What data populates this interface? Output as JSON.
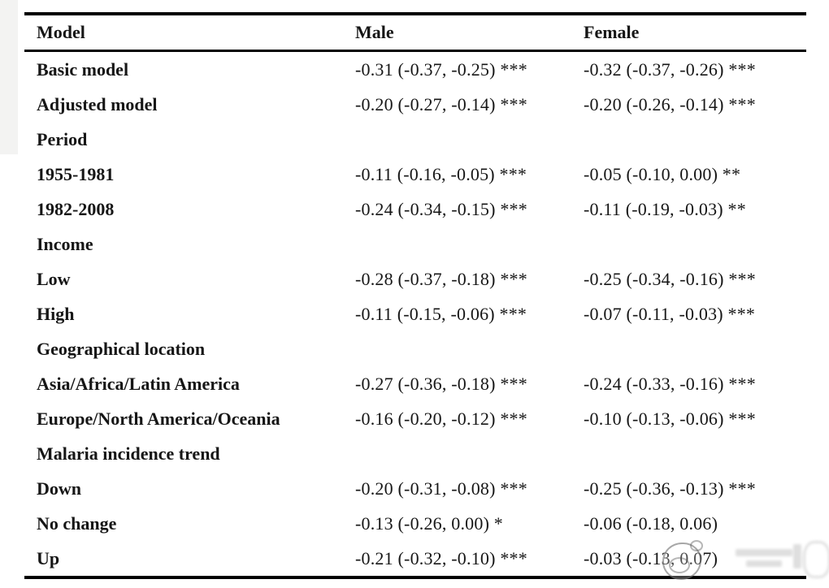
{
  "colors": {
    "background": "#ffffff",
    "text": "#161616",
    "rule": "#000000",
    "watermark_gray": "#969696"
  },
  "table": {
    "columns": [
      {
        "label": "Model"
      },
      {
        "label": "Male"
      },
      {
        "label": "Female"
      }
    ],
    "rows": [
      {
        "label": "Basic model",
        "male": "-0.31 (-0.37, -0.25) ***",
        "female": "-0.32 (-0.37, -0.26) ***"
      },
      {
        "label": "Adjusted model",
        "male": "-0.20 (-0.27, -0.14) ***",
        "female": "-0.20 (-0.26, -0.14) ***"
      },
      {
        "label": "Period",
        "male": "",
        "female": ""
      },
      {
        "label": "1955-1981",
        "male": "-0.11 (-0.16, -0.05) ***",
        "female": "-0.05 (-0.10, 0.00) **"
      },
      {
        "label": "1982-2008",
        "male": "-0.24 (-0.34, -0.15) ***",
        "female": "-0.11 (-0.19, -0.03) **"
      },
      {
        "label": "Income",
        "male": "",
        "female": ""
      },
      {
        "label": "Low",
        "male": "-0.28 (-0.37, -0.18) ***",
        "female": "-0.25 (-0.34, -0.16) ***"
      },
      {
        "label": "High",
        "male": "-0.11 (-0.15, -0.06) ***",
        "female": "-0.07 (-0.11, -0.03) ***"
      },
      {
        "label": "Geographical location",
        "male": "",
        "female": ""
      },
      {
        "label": "Asia/Africa/Latin America",
        "male": "-0.27 (-0.36, -0.18) ***",
        "female": "-0.24 (-0.33, -0.16) ***"
      },
      {
        "label": "Europe/North America/Oceania",
        "male": "-0.16 (-0.20, -0.12) ***",
        "female": "-0.10 (-0.13, -0.06) ***"
      },
      {
        "label": "Malaria incidence trend",
        "male": "",
        "female": ""
      },
      {
        "label": "Down",
        "male": "-0.20 (-0.31, -0.08) ***",
        "female": "-0.25 (-0.36, -0.13) ***"
      },
      {
        "label": "No change",
        "male": "-0.13 (-0.26, 0.00) *",
        "female": "-0.06 (-0.18, 0.06)"
      },
      {
        "label": "Up",
        "male": "-0.21 (-0.32, -0.10) ***",
        "female": "-0.03 (-0.13, 0.07)"
      }
    ]
  }
}
